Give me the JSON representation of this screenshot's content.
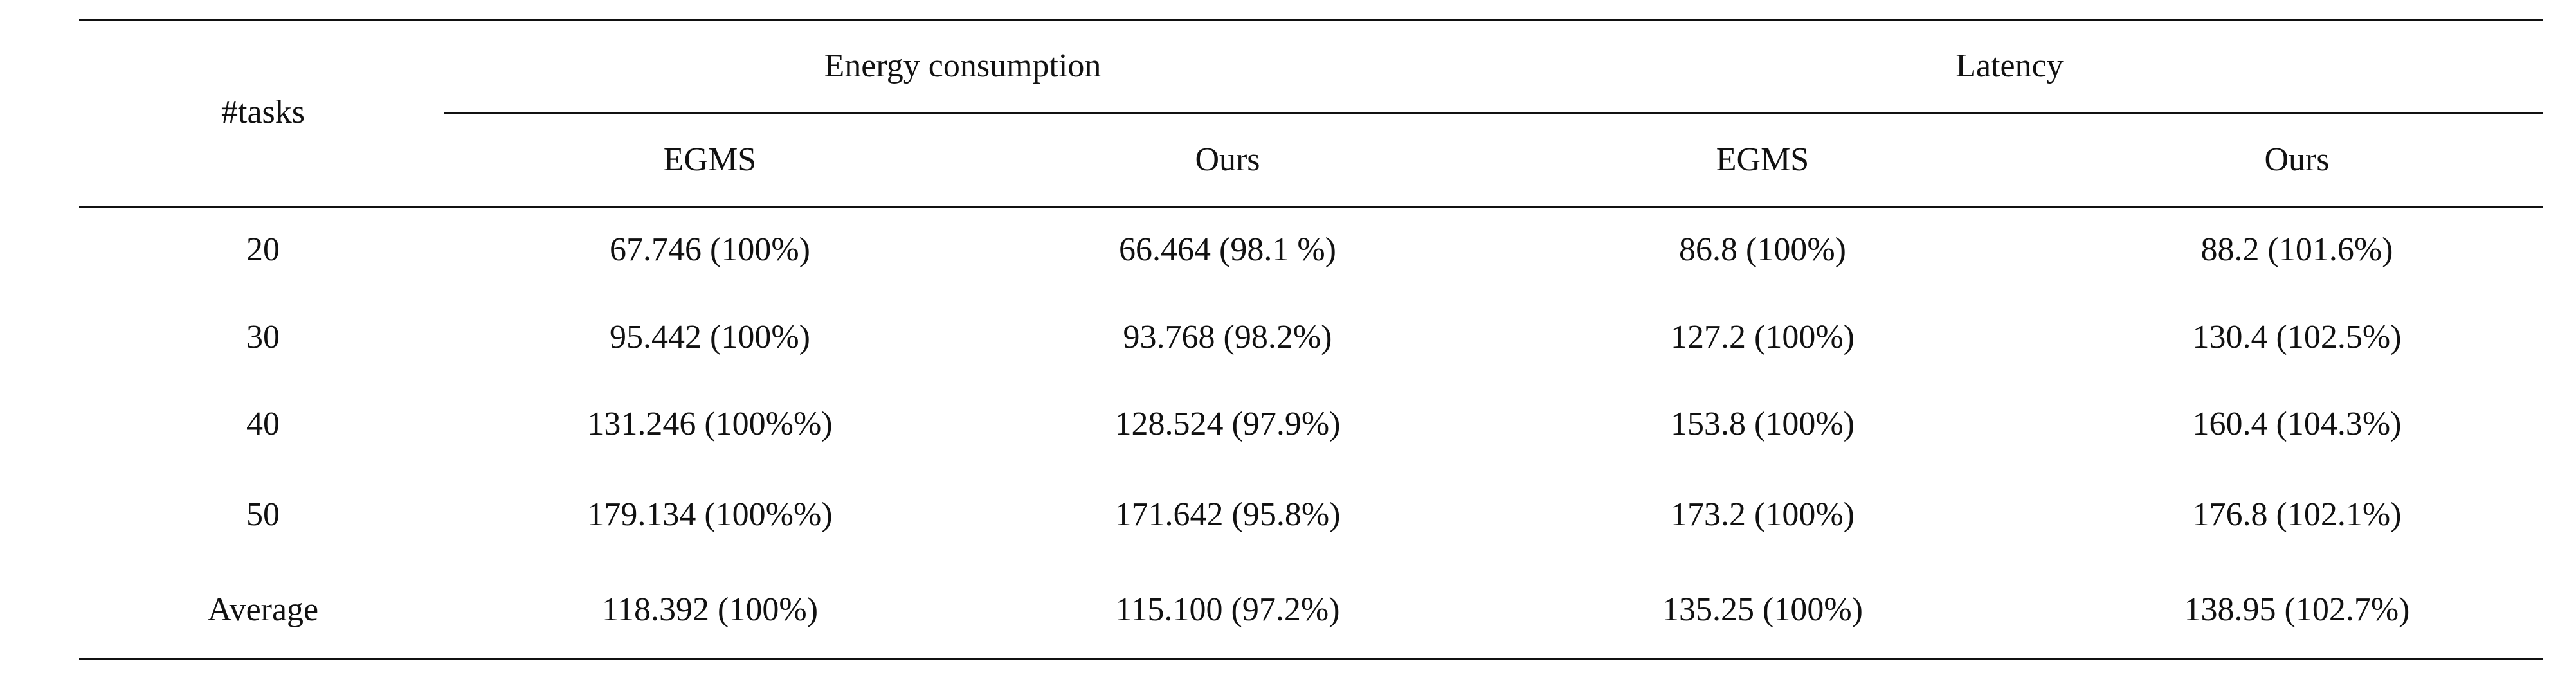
{
  "table": {
    "row_header": "#tasks",
    "groups": [
      "Energy consumption",
      "Latency"
    ],
    "subheaders": [
      "EGMS",
      "Ours",
      "EGMS",
      "Ours"
    ],
    "rows": [
      [
        "20",
        "67.746 (100%)",
        "66.464 (98.1 %)",
        "86.8 (100%)",
        "88.2 (101.6%)"
      ],
      [
        "30",
        "95.442 (100%)",
        "93.768 (98.2%)",
        "127.2 (100%)",
        "130.4 (102.5%)"
      ],
      [
        "40",
        "131.246 (100%%)",
        "128.524 (97.9%)",
        "153.8 (100%)",
        "160.4 (104.3%)"
      ],
      [
        "50",
        "179.134 (100%%)",
        "171.642 (95.8%)",
        "173.2 (100%)",
        "176.8 (102.1%)"
      ],
      [
        "Average",
        "118.392 (100%)",
        "115.100 (97.2%)",
        "135.25 (100%)",
        "138.95 (102.7%)"
      ]
    ]
  }
}
